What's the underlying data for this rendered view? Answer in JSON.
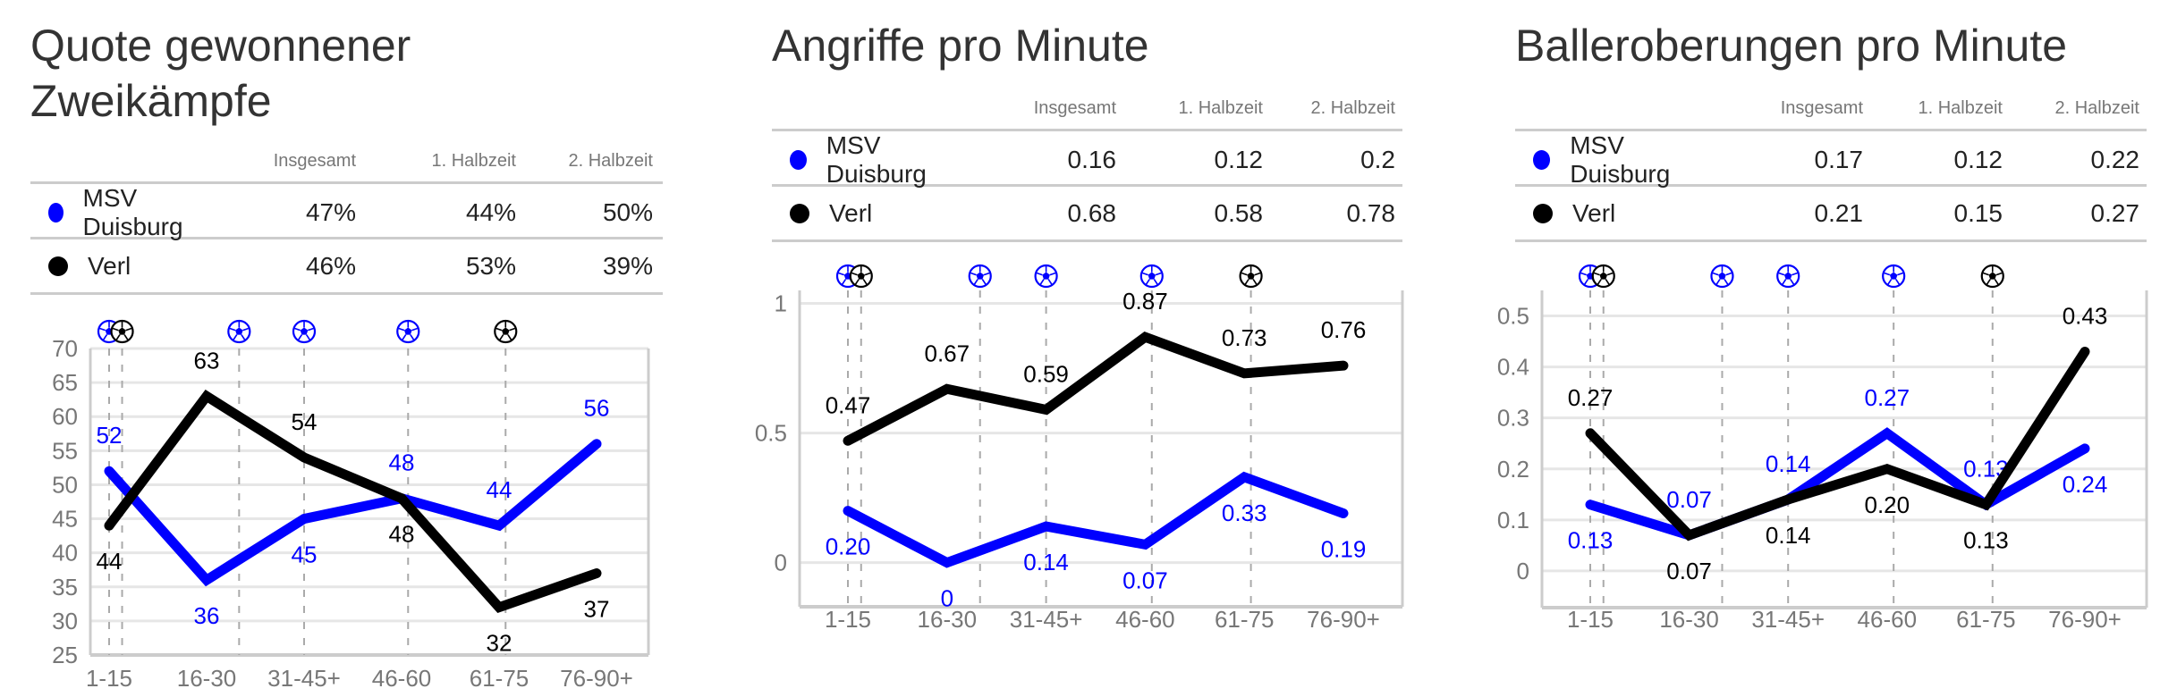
{
  "colors": {
    "duisburg": "#0000ff",
    "verl": "#000000",
    "grid": "#e6e6e6",
    "axis": "#cccccc",
    "tick_label": "#777777"
  },
  "table_headers": [
    "Insgesamt",
    "1. Halbzeit",
    "2. Halbzeit"
  ],
  "panels": [
    {
      "title_lines": [
        "Quote gewonnener",
        "Zweikämpfe"
      ],
      "rows": [
        {
          "team": "MSV Duisburg",
          "values": [
            "47%",
            "44%",
            "50%"
          ]
        },
        {
          "team": "Verl",
          "values": [
            "46%",
            "53%",
            "39%"
          ]
        }
      ]
    },
    {
      "title_lines": [
        "Angriffe pro Minute"
      ],
      "rows": [
        {
          "team": "MSV Duisburg",
          "values": [
            "0.16",
            "0.12",
            "0.2"
          ]
        },
        {
          "team": "Verl",
          "values": [
            "0.68",
            "0.58",
            "0.78"
          ]
        }
      ]
    },
    {
      "title_lines": [
        "Balleroberungen pro Minute"
      ],
      "rows": [
        {
          "team": "MSV Duisburg",
          "values": [
            "0.17",
            "0.12",
            "0.22"
          ]
        },
        {
          "team": "Verl",
          "values": [
            "0.21",
            "0.15",
            "0.27"
          ]
        }
      ]
    }
  ],
  "goals": [
    {
      "team": "MSV Duisburg",
      "minute": 8,
      "icon": "soccer-ball-icon"
    },
    {
      "team": "Verl",
      "minute": 10,
      "icon": "soccer-ball-icon"
    },
    {
      "team": "MSV Duisburg",
      "minute": 28,
      "icon": "soccer-ball-icon"
    },
    {
      "team": "MSV Duisburg",
      "minute": 38,
      "icon": "soccer-ball-icon"
    },
    {
      "team": "MSV Duisburg",
      "minute": 54,
      "icon": "soccer-ball-icon"
    },
    {
      "team": "Verl",
      "minute": 69,
      "icon": "soccer-ball-icon"
    }
  ],
  "chart_data": [
    {
      "type": "line",
      "title": "Quote gewonnener Zweikämpfe",
      "categories": [
        "1-15",
        "16-30",
        "31-45+",
        "46-60",
        "61-75",
        "76-90+"
      ],
      "ylim": [
        25,
        70
      ],
      "yticks": [
        25,
        30,
        35,
        40,
        45,
        50,
        55,
        60,
        65,
        70
      ],
      "grid": true,
      "series": [
        {
          "name": "MSV Duisburg",
          "values": [
            52,
            36,
            45,
            48,
            44,
            56
          ],
          "labels": [
            "52",
            "36",
            "45",
            "48",
            "44",
            "56"
          ]
        },
        {
          "name": "Verl",
          "values": [
            44,
            63,
            54,
            48,
            32,
            37
          ],
          "labels": [
            "44",
            "63",
            "54",
            "48",
            "32",
            "37"
          ]
        }
      ]
    },
    {
      "type": "line",
      "title": "Angriffe pro Minute",
      "categories": [
        "1-15",
        "16-30",
        "31-45+",
        "46-60",
        "61-75",
        "76-90+"
      ],
      "ylim": [
        -0.17,
        1.05
      ],
      "yticks": [
        0,
        0.5,
        1
      ],
      "grid": true,
      "series": [
        {
          "name": "MSV Duisburg",
          "values": [
            0.2,
            0,
            0.14,
            0.07,
            0.33,
            0.19
          ],
          "labels": [
            "0.20",
            "0",
            "0.14",
            "0.07",
            "0.33",
            "0.19"
          ]
        },
        {
          "name": "Verl",
          "values": [
            0.47,
            0.67,
            0.59,
            0.87,
            0.73,
            0.76
          ],
          "labels": [
            "0.47",
            "0.67",
            "0.59",
            "0.87",
            "0.73",
            "0.76"
          ]
        }
      ]
    },
    {
      "type": "line",
      "title": "Balleroberungen pro Minute",
      "categories": [
        "1-15",
        "16-30",
        "31-45+",
        "46-60",
        "61-75",
        "76-90+"
      ],
      "ylim": [
        -0.072,
        0.55
      ],
      "yticks": [
        0,
        0.1,
        0.2,
        0.3,
        0.4,
        0.5
      ],
      "grid": true,
      "series": [
        {
          "name": "MSV Duisburg",
          "values": [
            0.13,
            0.07,
            0.14,
            0.27,
            0.13,
            0.24
          ],
          "labels": [
            "0.13",
            "0.07",
            "0.14",
            "0.27",
            "0.13",
            "0.24"
          ]
        },
        {
          "name": "Verl",
          "values": [
            0.27,
            0.07,
            0.14,
            0.2,
            0.13,
            0.43
          ],
          "labels": [
            "0.27",
            "0.07",
            "0.14",
            "0.20",
            "0.13",
            "0.43"
          ]
        }
      ]
    }
  ]
}
